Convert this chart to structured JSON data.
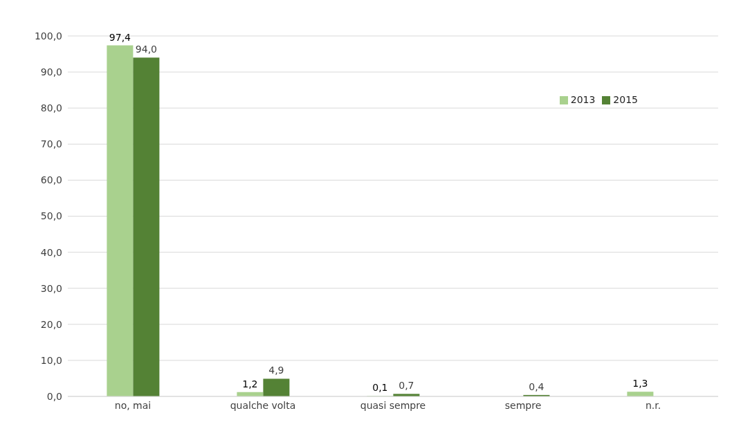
{
  "chart_data": {
    "type": "bar",
    "categories": [
      "no, mai",
      "qualche volta",
      "quasi sempre",
      "sempre",
      "n.r."
    ],
    "series": [
      {
        "name": "2013",
        "color": "#a9d18e",
        "values": [
          97.4,
          1.2,
          0.1,
          null,
          1.3
        ],
        "value_labels": [
          "97,4",
          "1,2",
          "0,1",
          null,
          "1,3"
        ]
      },
      {
        "name": "2015",
        "color": "#548235",
        "values": [
          94.0,
          4.9,
          0.7,
          0.4,
          null
        ],
        "value_labels": [
          "94,0",
          "4,9",
          "0,7",
          "0,4",
          null
        ]
      }
    ],
    "ylim": [
      0,
      100
    ],
    "yticks": [
      {
        "value": 0,
        "label": "0,0"
      },
      {
        "value": 10,
        "label": "10,0"
      },
      {
        "value": 20,
        "label": "20,0"
      },
      {
        "value": 30,
        "label": "30,0"
      },
      {
        "value": 40,
        "label": "40,0"
      },
      {
        "value": 50,
        "label": "50,0"
      },
      {
        "value": 60,
        "label": "60,0"
      },
      {
        "value": 70,
        "label": "70,0"
      },
      {
        "value": 80,
        "label": "80,0"
      },
      {
        "value": 90,
        "label": "90,0"
      },
      {
        "value": 100,
        "label": "100,0"
      }
    ],
    "grid": "y",
    "legend": "top right"
  }
}
